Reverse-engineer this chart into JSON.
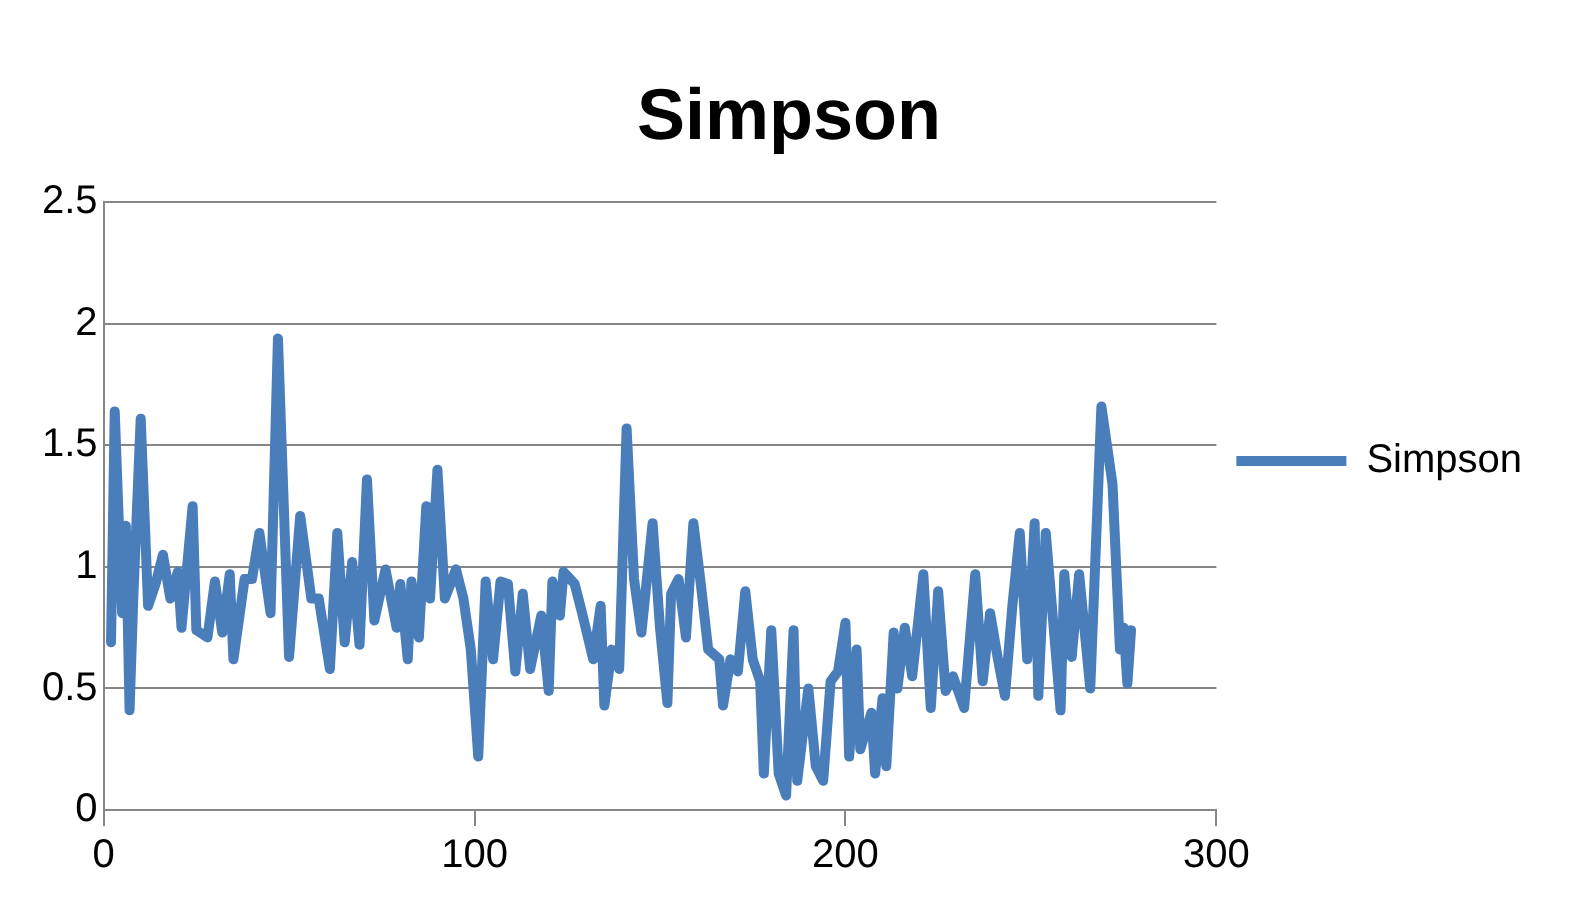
{
  "chart_data": {
    "type": "line",
    "title": "Simpson",
    "x": [
      2,
      3,
      5,
      6,
      7,
      8,
      10,
      12,
      14,
      16,
      18,
      20,
      21,
      24,
      25,
      28,
      30,
      32,
      34,
      35,
      38,
      40,
      42,
      45,
      47,
      50,
      53,
      56,
      58,
      61,
      63,
      65,
      67,
      69,
      71,
      73,
      76,
      79,
      80,
      82,
      83,
      85,
      87,
      88,
      90,
      92,
      95,
      97,
      99,
      101,
      103,
      105,
      107,
      109,
      111,
      113,
      115,
      118,
      120,
      121,
      123,
      124,
      127,
      129,
      132,
      134,
      135,
      137,
      139,
      141,
      143,
      145,
      148,
      150,
      152,
      153,
      155,
      157,
      159,
      161,
      163,
      166,
      167,
      169,
      171,
      173,
      175,
      177,
      178,
      180,
      182,
      184,
      186,
      187,
      190,
      192,
      194,
      196,
      198,
      200,
      201,
      203,
      204,
      207,
      208,
      210,
      211,
      213,
      214,
      216,
      218,
      221,
      223,
      225,
      227,
      229,
      232,
      235,
      237,
      239,
      241,
      243,
      245,
      247,
      249,
      251,
      252,
      254,
      258,
      259,
      261,
      263,
      266,
      269,
      272,
      274,
      275,
      276,
      277
    ],
    "series": [
      {
        "name": "Simpson",
        "color": "#4a7ebb",
        "values": [
          0.69,
          1.64,
          0.81,
          1.17,
          0.41,
          0.87,
          1.61,
          0.84,
          0.93,
          1.05,
          0.87,
          0.98,
          0.75,
          1.25,
          0.74,
          0.71,
          0.94,
          0.73,
          0.97,
          0.62,
          0.95,
          0.95,
          1.14,
          0.81,
          1.94,
          0.63,
          1.21,
          0.87,
          0.87,
          0.58,
          1.14,
          0.69,
          1.02,
          0.68,
          1.36,
          0.78,
          0.99,
          0.75,
          0.93,
          0.62,
          0.94,
          0.71,
          1.25,
          0.87,
          1.4,
          0.87,
          0.99,
          0.87,
          0.66,
          0.22,
          0.94,
          0.62,
          0.94,
          0.93,
          0.57,
          0.89,
          0.58,
          0.8,
          0.49,
          0.94,
          0.8,
          0.98,
          0.93,
          0.81,
          0.62,
          0.84,
          0.43,
          0.66,
          0.58,
          1.57,
          0.95,
          0.73,
          1.18,
          0.75,
          0.44,
          0.89,
          0.95,
          0.71,
          1.18,
          0.93,
          0.66,
          0.62,
          0.43,
          0.62,
          0.57,
          0.9,
          0.62,
          0.53,
          0.15,
          0.74,
          0.15,
          0.06,
          0.74,
          0.12,
          0.5,
          0.18,
          0.12,
          0.53,
          0.57,
          0.77,
          0.22,
          0.66,
          0.25,
          0.4,
          0.15,
          0.46,
          0.18,
          0.73,
          0.5,
          0.75,
          0.55,
          0.97,
          0.42,
          0.9,
          0.49,
          0.55,
          0.42,
          0.97,
          0.53,
          0.81,
          0.63,
          0.47,
          0.84,
          1.14,
          0.62,
          1.18,
          0.47,
          1.14,
          0.41,
          0.97,
          0.63,
          0.97,
          0.5,
          1.66,
          1.34,
          0.66,
          0.75,
          0.52,
          0.74
        ]
      }
    ],
    "xlim": [
      0,
      300
    ],
    "xticks": [
      0,
      100,
      200,
      300
    ],
    "ylim": [
      0,
      2.5
    ],
    "yticks": [
      0,
      0.5,
      1,
      1.5,
      2,
      2.5
    ],
    "grid": "y",
    "legend": "right",
    "marker": "none",
    "line_style": "solid"
  }
}
